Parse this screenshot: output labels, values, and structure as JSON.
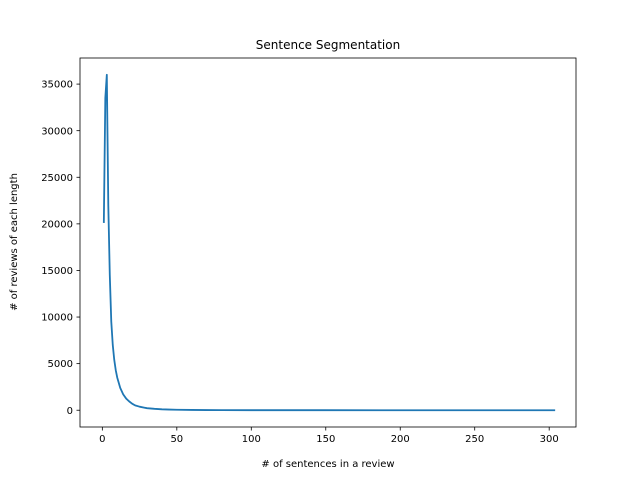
{
  "chart_data": {
    "type": "line",
    "title": "Sentence Segmentation",
    "xlabel": "# of sentences in a review",
    "ylabel": "# of reviews of each length",
    "xlim": [
      -15,
      318
    ],
    "ylim": [
      -1800,
      37800
    ],
    "x_ticks": [
      0,
      50,
      100,
      150,
      200,
      250,
      300
    ],
    "y_ticks": [
      0,
      5000,
      10000,
      15000,
      20000,
      25000,
      30000,
      35000
    ],
    "grid": false,
    "legend": "none",
    "series": [
      {
        "color": "#1f77b4",
        "x": [
          1,
          2,
          3,
          4,
          5,
          6,
          7,
          8,
          9,
          10,
          12,
          14,
          16,
          18,
          20,
          22,
          25,
          28,
          30,
          35,
          40,
          45,
          50,
          60,
          70,
          80,
          100,
          120,
          150,
          200,
          250,
          304
        ],
        "y": [
          20100,
          33500,
          36000,
          22000,
          14500,
          9500,
          7000,
          5400,
          4300,
          3500,
          2400,
          1700,
          1250,
          950,
          700,
          520,
          380,
          280,
          220,
          150,
          100,
          70,
          50,
          30,
          20,
          12,
          6,
          4,
          2,
          1,
          1,
          1
        ]
      }
    ]
  }
}
